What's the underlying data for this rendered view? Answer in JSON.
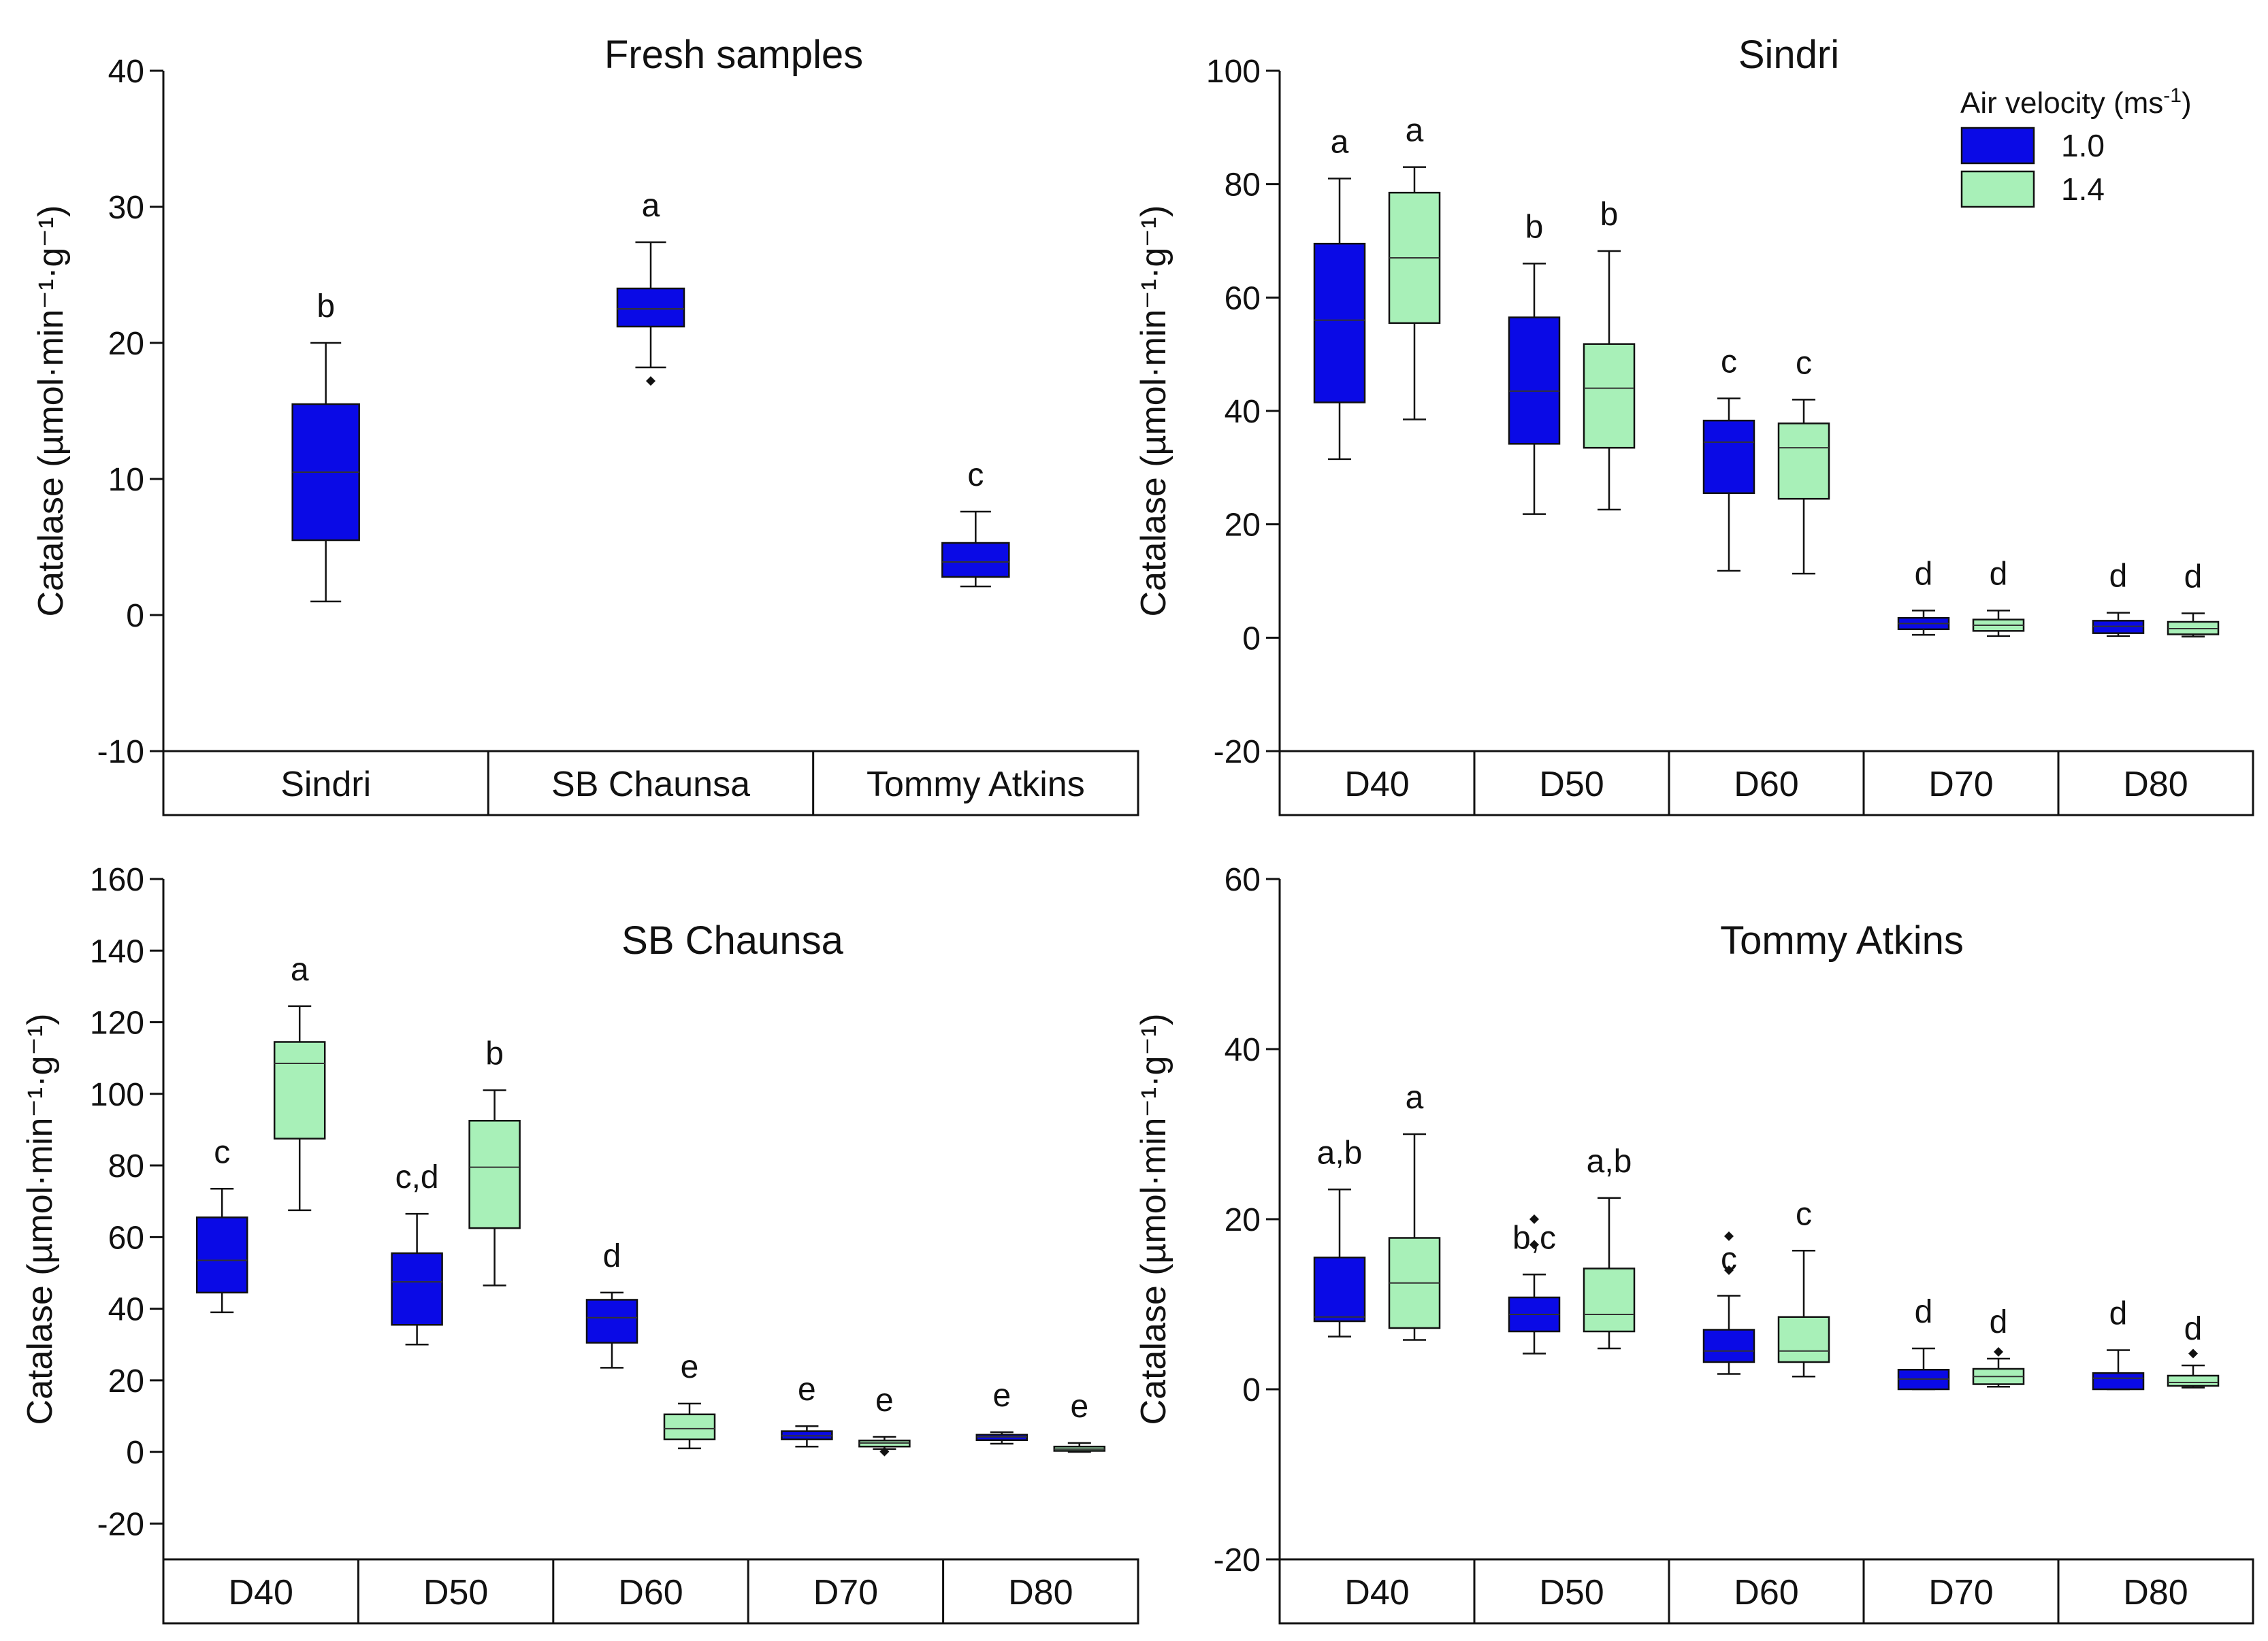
{
  "colors": {
    "v10": "#0a0ae6",
    "v14": "#a8f0b8",
    "stroke": "#111111"
  },
  "legend": {
    "title": "Air velocity (ms",
    "title_exp": "-1",
    "title_close": ")",
    "items": [
      {
        "label": "1.0",
        "color": "#0a0ae6"
      },
      {
        "label": "1.4",
        "color": "#a8f0b8"
      }
    ]
  },
  "chart_data": [
    {
      "type": "box",
      "title": "Fresh samples",
      "ylabel": "Catalase (µmol·min⁻¹·g⁻¹)",
      "ylim": [
        -10,
        40
      ],
      "yticks": [
        -10,
        0,
        10,
        20,
        30,
        40
      ],
      "categories": [
        "Sindri",
        "SB Chaunsa",
        "Tommy Atkins"
      ],
      "series": [
        {
          "name": "1.0",
          "boxes": [
            {
              "min": 1,
              "q1": 5.5,
              "median": 10.5,
              "q3": 15.5,
              "max": 20,
              "outliers": [],
              "letter": "b"
            },
            {
              "min": 18.2,
              "q1": 21.2,
              "median": 22.5,
              "q3": 24,
              "max": 27.4,
              "outliers": [
                17.2
              ],
              "letter": "a"
            },
            {
              "min": 2.1,
              "q1": 2.8,
              "median": 3.9,
              "q3": 5.3,
              "max": 7.6,
              "outliers": [],
              "letter": "c"
            }
          ]
        }
      ]
    },
    {
      "type": "box",
      "title": "Sindri",
      "ylabel": "Catalase (µmol·min⁻¹·g⁻¹)",
      "ylim": [
        -20,
        100
      ],
      "yticks": [
        -20,
        0,
        20,
        40,
        60,
        80,
        100
      ],
      "categories": [
        "D40",
        "D50",
        "D60",
        "D70",
        "D80"
      ],
      "series": [
        {
          "name": "1.0",
          "boxes": [
            {
              "min": 31.5,
              "q1": 41.5,
              "median": 56,
              "q3": 69.5,
              "max": 81,
              "outliers": [],
              "letter": "a"
            },
            {
              "min": 21.8,
              "q1": 34.2,
              "median": 43.5,
              "q3": 56.5,
              "max": 66,
              "outliers": [],
              "letter": "b"
            },
            {
              "min": 11.8,
              "q1": 25.5,
              "median": 34.5,
              "q3": 38.3,
              "max": 42.2,
              "outliers": [],
              "letter": "c"
            },
            {
              "min": 0.5,
              "q1": 1.5,
              "median": 2.5,
              "q3": 3.5,
              "max": 4.8,
              "outliers": [],
              "letter": "d"
            },
            {
              "min": 0.3,
              "q1": 0.8,
              "median": 2,
              "q3": 3,
              "max": 4.4,
              "outliers": [],
              "letter": "d"
            }
          ]
        },
        {
          "name": "1.4",
          "boxes": [
            {
              "min": 38.5,
              "q1": 55.5,
              "median": 67,
              "q3": 78.5,
              "max": 83,
              "outliers": [],
              "letter": "a"
            },
            {
              "min": 22.6,
              "q1": 33.5,
              "median": 44,
              "q3": 51.8,
              "max": 68.2,
              "outliers": [],
              "letter": "b"
            },
            {
              "min": 11.3,
              "q1": 24.5,
              "median": 33.5,
              "q3": 37.8,
              "max": 42,
              "outliers": [],
              "letter": "c"
            },
            {
              "min": 0.3,
              "q1": 1.2,
              "median": 2.2,
              "q3": 3.2,
              "max": 4.8,
              "outliers": [],
              "letter": "d"
            },
            {
              "min": 0.2,
              "q1": 0.6,
              "median": 1.6,
              "q3": 2.8,
              "max": 4.3,
              "outliers": [],
              "letter": "d"
            }
          ]
        }
      ]
    },
    {
      "type": "box",
      "title": "SB Chaunsa",
      "ylabel": "Catalase (µmol·min⁻¹·g⁻¹)",
      "ylim": [
        -30,
        160
      ],
      "yticks": [
        -20,
        0,
        20,
        40,
        60,
        80,
        100,
        120,
        140,
        160
      ],
      "categories": [
        "D40",
        "D50",
        "D60",
        "D70",
        "D80"
      ],
      "series": [
        {
          "name": "1.0",
          "boxes": [
            {
              "min": 39,
              "q1": 44.5,
              "median": 53.5,
              "q3": 65.5,
              "max": 73.5,
              "outliers": [],
              "letter": "c"
            },
            {
              "min": 30,
              "q1": 35.5,
              "median": 47.5,
              "q3": 55.5,
              "max": 66.5,
              "outliers": [],
              "letter": "c,d"
            },
            {
              "min": 23.5,
              "q1": 30.5,
              "median": 37.5,
              "q3": 42.5,
              "max": 44.5,
              "outliers": [],
              "letter": "d"
            },
            {
              "min": 1.5,
              "q1": 3.5,
              "median": 4.5,
              "q3": 5.8,
              "max": 7.2,
              "outliers": [],
              "letter": "e"
            },
            {
              "min": 2.3,
              "q1": 3.3,
              "median": 4.2,
              "q3": 4.8,
              "max": 5.5,
              "outliers": [],
              "letter": "e"
            }
          ]
        },
        {
          "name": "1.4",
          "boxes": [
            {
              "min": 67.5,
              "q1": 87.5,
              "median": 108.5,
              "q3": 114.5,
              "max": 124.5,
              "outliers": [],
              "letter": "a"
            },
            {
              "min": 46.5,
              "q1": 62.5,
              "median": 79.5,
              "q3": 92.5,
              "max": 101,
              "outliers": [],
              "letter": "b"
            },
            {
              "min": 1,
              "q1": 3.5,
              "median": 6.5,
              "q3": 10.5,
              "max": 13.5,
              "outliers": [],
              "letter": "e"
            },
            {
              "min": 0.8,
              "q1": 1.5,
              "median": 2.5,
              "q3": 3.2,
              "max": 4.2,
              "outliers": [
                0.1
              ],
              "letter": "e"
            },
            {
              "min": 0,
              "q1": 0.3,
              "median": 0.8,
              "q3": 1.5,
              "max": 2.5,
              "outliers": [],
              "letter": "e"
            }
          ]
        }
      ]
    },
    {
      "type": "box",
      "title": "Tommy Atkins",
      "ylabel": "Catalase (µmol·min⁻¹·g⁻¹)",
      "ylim": [
        -20,
        60
      ],
      "yticks": [
        -20,
        0,
        20,
        40,
        60
      ],
      "categories": [
        "D40",
        "D50",
        "D60",
        "D70",
        "D80"
      ],
      "series": [
        {
          "name": "1.0",
          "boxes": [
            {
              "min": 6.2,
              "q1": 8,
              "median": 8.5,
              "q3": 15.5,
              "max": 23.5,
              "outliers": [],
              "letter": "a,b"
            },
            {
              "min": 4.2,
              "q1": 6.8,
              "median": 8.8,
              "q3": 10.8,
              "max": 13.5,
              "outliers": [
                17,
                20
              ],
              "letter": "b,c"
            },
            {
              "min": 1.8,
              "q1": 3.2,
              "median": 4.5,
              "q3": 7,
              "max": 11,
              "outliers": [
                14,
                18
              ],
              "letter": "c"
            },
            {
              "min": 0,
              "q1": 0,
              "median": 1.2,
              "q3": 2.3,
              "max": 4.8,
              "outliers": [],
              "letter": "d"
            },
            {
              "min": 0,
              "q1": 0,
              "median": 1.3,
              "q3": 1.9,
              "max": 4.6,
              "outliers": [],
              "letter": "d"
            }
          ]
        },
        {
          "name": "1.4",
          "boxes": [
            {
              "min": 5.8,
              "q1": 7.2,
              "median": 12.5,
              "q3": 17.8,
              "max": 30,
              "outliers": [],
              "letter": "a"
            },
            {
              "min": 4.8,
              "q1": 6.8,
              "median": 8.8,
              "q3": 14.2,
              "max": 22.5,
              "outliers": [],
              "letter": "a,b"
            },
            {
              "min": 1.5,
              "q1": 3.2,
              "median": 4.5,
              "q3": 8.5,
              "max": 16.3,
              "outliers": [],
              "letter": "c"
            },
            {
              "min": 0.3,
              "q1": 0.6,
              "median": 1.5,
              "q3": 2.4,
              "max": 3.6,
              "outliers": [
                4.4
              ],
              "letter": "d"
            },
            {
              "min": 0.2,
              "q1": 0.4,
              "median": 0.8,
              "q3": 1.6,
              "max": 2.8,
              "outliers": [
                4.2
              ],
              "letter": "d"
            }
          ]
        }
      ]
    }
  ]
}
